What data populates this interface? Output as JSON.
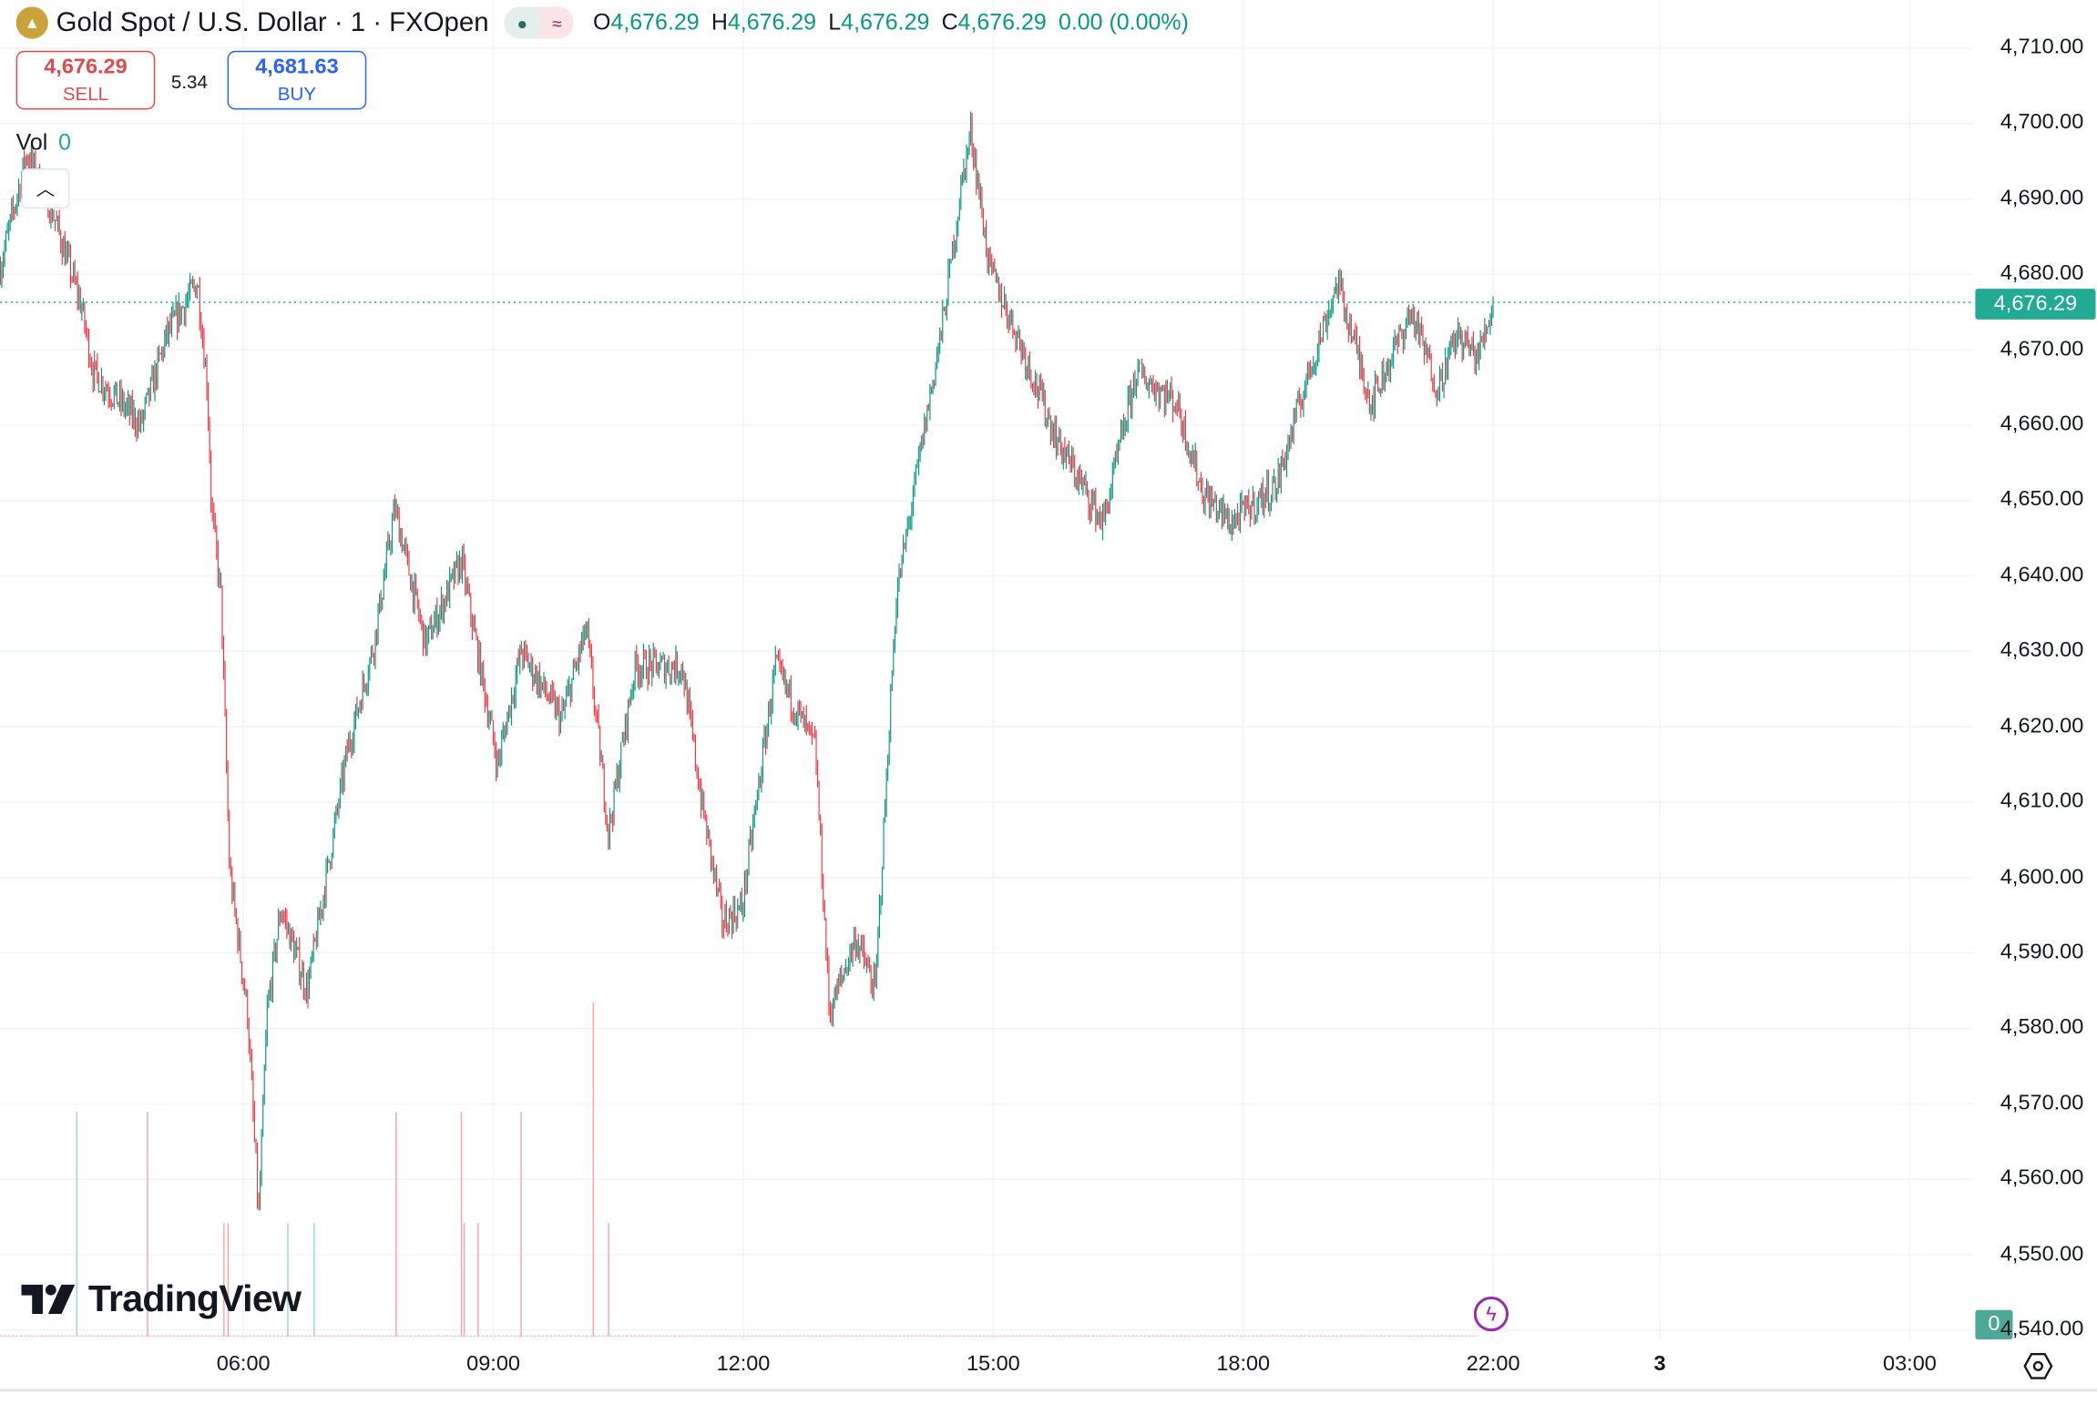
{
  "header": {
    "symbol_title": "Gold Spot / U.S. Dollar · 1 · FXOpen",
    "icon": "gold-bars-icon",
    "status_market": "market-open-dot-icon",
    "status_delay": "≈",
    "ohlc": [
      {
        "label": "O",
        "value": "4,676.29"
      },
      {
        "label": "H",
        "value": "4,676.29"
      },
      {
        "label": "L",
        "value": "4,676.29"
      },
      {
        "label": "C",
        "value": "4,676.29"
      }
    ],
    "change": "0.00 (0.00%)"
  },
  "trade": {
    "sell_price": "4,676.29",
    "sell_label": "SELL",
    "spread": "5.34",
    "buy_price": "4,681.63",
    "buy_label": "BUY"
  },
  "volume_legend": {
    "label": "Vol",
    "value": "0"
  },
  "current_price_tag": "4,676.29",
  "volume_tag": "0",
  "brand": "TradingView",
  "colors": {
    "up": "#089981",
    "down": "#f23645",
    "accent": "#2962ff",
    "price_tag": "#22ab94"
  },
  "chart_data": {
    "type": "candlestick",
    "interval": "1 minute",
    "ylim": [
      4540,
      4710
    ],
    "y_ticks": [
      "4,710.00",
      "4,700.00",
      "4,690.00",
      "4,680.00",
      "4,670.00",
      "4,660.00",
      "4,650.00",
      "4,640.00",
      "4,630.00",
      "4,620.00",
      "4,610.00",
      "4,600.00",
      "4,590.00",
      "4,580.00",
      "4,570.00",
      "4,560.00",
      "4,550.00",
      "4,540.00"
    ],
    "x_ticks": [
      {
        "label": "06:00",
        "time": "06:00"
      },
      {
        "label": "09:00",
        "time": "09:00"
      },
      {
        "label": "12:00",
        "time": "12:00"
      },
      {
        "label": "15:00",
        "time": "15:00"
      },
      {
        "label": "18:00",
        "time": "18:00"
      },
      {
        "label": "22:00",
        "time": "22:00"
      },
      {
        "label": "3",
        "time": "24:00",
        "bold": true
      },
      {
        "label": "03:00",
        "time": "27:00"
      }
    ],
    "grid": true,
    "price_path": [
      [
        "03:05",
        4681
      ],
      [
        "03:24",
        4696
      ],
      [
        "03:43",
        4688
      ],
      [
        "04:03",
        4676
      ],
      [
        "04:12",
        4667
      ],
      [
        "04:46",
        4660
      ],
      [
        "05:05",
        4672
      ],
      [
        "05:27",
        4679
      ],
      [
        "05:34",
        4665
      ],
      [
        "05:37",
        4649
      ],
      [
        "05:44",
        4637
      ],
      [
        "05:50",
        4601
      ],
      [
        "06:03",
        4582
      ],
      [
        "06:11",
        4555
      ],
      [
        "06:17",
        4582
      ],
      [
        "06:27",
        4596
      ],
      [
        "06:46",
        4585
      ],
      [
        "07:15",
        4617
      ],
      [
        "07:34",
        4631
      ],
      [
        "07:49",
        4649
      ],
      [
        "08:11",
        4631
      ],
      [
        "08:37",
        4642
      ],
      [
        "09:03",
        4615
      ],
      [
        "09:20",
        4630
      ],
      [
        "09:49",
        4621
      ],
      [
        "10:07",
        4633
      ],
      [
        "10:23",
        4606
      ],
      [
        "10:42",
        4628
      ],
      [
        "11:16",
        4628
      ],
      [
        "11:30",
        4610
      ],
      [
        "11:45",
        4594
      ],
      [
        "11:59",
        4596
      ],
      [
        "12:23",
        4628
      ],
      [
        "12:52",
        4617
      ],
      [
        "13:02",
        4582
      ],
      [
        "13:21",
        4592
      ],
      [
        "13:35",
        4585
      ],
      [
        "13:50",
        4637
      ],
      [
        "14:09",
        4658
      ],
      [
        "14:24",
        4674
      ],
      [
        "14:38",
        4693
      ],
      [
        "14:44",
        4699
      ],
      [
        "14:57",
        4681
      ],
      [
        "15:17",
        4672
      ],
      [
        "15:46",
        4658
      ],
      [
        "16:19",
        4647
      ],
      [
        "16:43",
        4667
      ],
      [
        "17:12",
        4663
      ],
      [
        "17:31",
        4651
      ],
      [
        "17:51",
        4647
      ],
      [
        "18:24",
        4652
      ],
      [
        "18:44",
        4665
      ],
      [
        "19:08",
        4679
      ],
      [
        "19:32",
        4663
      ],
      [
        "20:01",
        4675
      ],
      [
        "20:20",
        4665
      ],
      [
        "20:34",
        4672
      ],
      [
        "20:49",
        4669
      ],
      [
        "22:00",
        4676.29
      ]
    ],
    "last_price": 4676.29,
    "volume_spikes": [
      [
        "04:00",
        "up",
        2
      ],
      [
        "04:51",
        "down",
        2
      ],
      [
        "05:46",
        "down",
        1
      ],
      [
        "05:49",
        "down",
        1
      ],
      [
        "06:32",
        "up",
        1
      ],
      [
        "06:51",
        "up",
        1
      ],
      [
        "07:50",
        "down",
        2
      ],
      [
        "08:37",
        "down",
        2
      ],
      [
        "08:39",
        "down",
        1
      ],
      [
        "08:49",
        "down",
        1
      ],
      [
        "09:20",
        "down",
        2
      ],
      [
        "10:12",
        "down",
        3
      ],
      [
        "10:23",
        "down",
        1
      ]
    ]
  }
}
